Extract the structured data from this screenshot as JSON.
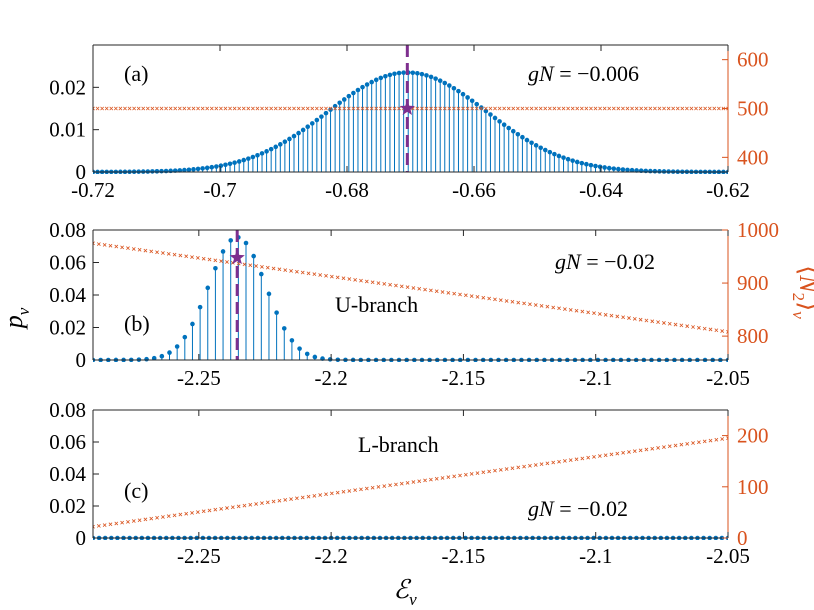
{
  "colors": {
    "stem": "#0072bd",
    "orange": "#d9531e",
    "purple": "#7e2f8e",
    "axis": "#262626"
  },
  "shared": {
    "ylabel": "p",
    "ylabel_sub": "ν",
    "ylabel_right_pre": "⟨",
    "ylabel_right_var": "N",
    "ylabel_right_sub2": "2",
    "ylabel_right_post": "⟩",
    "ylabel_right_subnu": "ν",
    "xlabel": "ℰ",
    "xlabel_sub": "ν"
  },
  "chart_data": [
    {
      "panel": "(a)",
      "type": "stem+scatter",
      "annotation_g": "gN",
      "annotation_rest": " = −0.006",
      "branch_label": "",
      "xlim": [
        -0.72,
        -0.62
      ],
      "ylim": [
        0,
        0.03
      ],
      "y2lim": [
        370,
        630
      ],
      "xticks": [
        -0.72,
        -0.7,
        -0.68,
        -0.66,
        -0.64,
        -0.62
      ],
      "xtick_labels": [
        "-0.72",
        "-0.7",
        "-0.68",
        "-0.66",
        "-0.64",
        "-0.62"
      ],
      "yticks": [
        0,
        0.01,
        0.02
      ],
      "ytick_labels": [
        "0",
        "0.01",
        "0.02"
      ],
      "y2ticks": [
        400,
        500,
        600
      ],
      "y2tick_labels": [
        "400",
        "500",
        "600"
      ],
      "stem_series": {
        "name": "p_ν",
        "x_start": -0.72,
        "x_end": -0.62,
        "count": 140,
        "gauss_mean": -0.6705,
        "gauss_sigma": 0.0125,
        "gauss_peak": 0.0235
      },
      "n2_series": {
        "name": "⟨N2⟩ν",
        "x_start": -0.72,
        "x_end": -0.62,
        "count": 140,
        "y_start": 500,
        "y_end": 500
      },
      "mean_marker": {
        "x": -0.6705,
        "y": 0.015
      }
    },
    {
      "panel": "(b)",
      "type": "stem+scatter",
      "annotation_g": "gN",
      "annotation_rest": " = −0.02",
      "branch_label": "U-branch",
      "xlim": [
        -2.29,
        -2.05
      ],
      "ylim": [
        0,
        0.08
      ],
      "y2lim": [
        755,
        1000
      ],
      "xticks": [
        -2.25,
        -2.2,
        -2.15,
        -2.1,
        -2.05
      ],
      "xtick_labels": [
        "-2.25",
        "-2.2",
        "-2.15",
        "-2.1",
        "-2.05"
      ],
      "yticks": [
        0,
        0.02,
        0.04,
        0.06,
        0.08
      ],
      "ytick_labels": [
        "0",
        "0.02",
        "0.04",
        "0.06",
        "0.08"
      ],
      "y2ticks": [
        800,
        900,
        1000
      ],
      "y2tick_labels": [
        "800",
        "900",
        "1000"
      ],
      "stem_series": {
        "name": "p_ν",
        "x_start": -2.29,
        "x_end": -2.05,
        "count": 84,
        "gauss_mean": -2.2355,
        "gauss_sigma": 0.0108,
        "gauss_peak": 0.0755
      },
      "n2_series": {
        "name": "⟨N2⟩ν",
        "x_start": -2.29,
        "x_end": -2.05,
        "count": 110,
        "y_start": 975,
        "y_end": 808
      },
      "mean_marker": {
        "x": -2.2355,
        "y": 0.063
      }
    },
    {
      "panel": "(c)",
      "type": "stem+scatter",
      "annotation_g": "gN",
      "annotation_rest": " = −0.02",
      "branch_label": "L-branch",
      "xlim": [
        -2.29,
        -2.05
      ],
      "ylim": [
        0,
        0.08
      ],
      "y2lim": [
        0,
        250
      ],
      "xticks": [
        -2.25,
        -2.2,
        -2.15,
        -2.1,
        -2.05
      ],
      "xtick_labels": [
        "-2.25",
        "-2.2",
        "-2.15",
        "-2.1",
        "-2.05"
      ],
      "yticks": [
        0,
        0.02,
        0.04,
        0.06,
        0.08
      ],
      "ytick_labels": [
        "0",
        "0.02",
        "0.04",
        "0.06",
        "0.08"
      ],
      "y2ticks": [
        0,
        100,
        200
      ],
      "y2tick_labels": [
        "0",
        "100",
        "200"
      ],
      "stem_series": {
        "name": "p_ν",
        "x_start": -2.29,
        "x_end": -2.05,
        "count": 105,
        "gauss_mean": -2.2,
        "gauss_sigma": 0.01,
        "gauss_peak": 0.0
      },
      "n2_series": {
        "name": "⟨N2⟩ν",
        "x_start": -2.29,
        "x_end": -2.05,
        "count": 110,
        "y_start": 22,
        "y_end": 195
      },
      "mean_marker": null
    }
  ]
}
